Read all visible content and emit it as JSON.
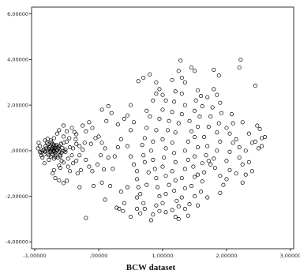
{
  "chart_data": {
    "type": "scatter",
    "title": "",
    "xlabel": "BCW dataset",
    "ylabel": "",
    "xlim": [
      -1.05,
      3.05
    ],
    "ylim": [
      -4.3,
      6.3
    ],
    "x_ticks": [
      {
        "value": -1,
        "label": "-1,00000"
      },
      {
        "value": 0,
        "label": ",00000"
      },
      {
        "value": 1,
        "label": "1,00000"
      },
      {
        "value": 2,
        "label": "2,00000"
      },
      {
        "value": 3,
        "label": "3,00000"
      }
    ],
    "y_ticks": [
      {
        "value": 6,
        "label": "6,00000"
      },
      {
        "value": 4,
        "label": "4,00000"
      },
      {
        "value": 2,
        "label": "2,00000"
      },
      {
        "value": 0,
        "label": ",00000"
      },
      {
        "value": -2,
        "label": "-2,00000"
      },
      {
        "value": -4,
        "label": "-4,00000"
      }
    ],
    "grid": false,
    "marker": "open-circle",
    "marker_color": "#000000",
    "series": [
      {
        "points": [
          [
            -0.42,
            1.0
          ],
          [
            -0.38,
            0.82
          ],
          [
            -0.46,
            0.55
          ],
          [
            -0.5,
            0.4
          ],
          [
            -0.55,
            0.35
          ],
          [
            -0.6,
            -0.25
          ],
          [
            -0.58,
            -0.45
          ],
          [
            -0.55,
            -0.52
          ],
          [
            -0.48,
            -0.35
          ],
          [
            -0.62,
            -0.65
          ],
          [
            -0.68,
            -1.2
          ],
          [
            -0.62,
            -1.3
          ],
          [
            -0.55,
            -1.42
          ],
          [
            -0.5,
            -1.32
          ],
          [
            -0.72,
            -1.0
          ],
          [
            -0.85,
            -0.55
          ],
          [
            -0.88,
            -0.3
          ],
          [
            -0.9,
            -0.2
          ],
          [
            -0.92,
            0.2
          ],
          [
            -0.94,
            0.35
          ],
          [
            -0.84,
            0.45
          ],
          [
            -0.8,
            0.52
          ],
          [
            -0.7,
            0.55
          ],
          [
            -0.7,
            -0.85
          ],
          [
            -0.45,
            -0.9
          ],
          [
            -0.35,
            -0.45
          ],
          [
            -0.42,
            -0.2
          ],
          [
            -0.4,
            0.1
          ],
          [
            -0.36,
            0.5
          ],
          [
            -0.48,
            -0.7
          ],
          [
            -0.3,
            0.2
          ],
          [
            -0.25,
            0.05
          ],
          [
            -0.22,
            0.35
          ],
          [
            -0.3,
            -0.2
          ],
          [
            -0.2,
            -0.4
          ],
          [
            -0.28,
            -0.85
          ],
          [
            -0.33,
            -1.0
          ],
          [
            -0.15,
            -0.7
          ],
          [
            -0.1,
            -0.9
          ],
          [
            -0.12,
            0.3
          ],
          [
            -0.2,
            0.85
          ],
          [
            -0.35,
            0.72
          ],
          [
            -0.25,
            1.1
          ],
          [
            -0.62,
            0.9
          ],
          [
            -0.55,
            0.62
          ],
          [
            -0.15,
            1.25
          ],
          [
            -0.1,
            1.0
          ],
          [
            -0.05,
            0.55
          ],
          [
            0.0,
            0.62
          ],
          [
            0.05,
            0.35
          ],
          [
            0.1,
            0.1
          ],
          [
            0.03,
            -0.2
          ],
          [
            -0.02,
            -0.6
          ],
          [
            0.08,
            -0.82
          ],
          [
            0.15,
            -0.3
          ],
          [
            0.18,
            -1.55
          ],
          [
            0.05,
            -1.4
          ],
          [
            0.1,
            -2.15
          ],
          [
            -0.08,
            -1.55
          ],
          [
            -0.3,
            -1.6
          ],
          [
            -0.2,
            -2.95
          ],
          [
            0.28,
            -2.5
          ],
          [
            0.32,
            -2.55
          ],
          [
            0.4,
            -2.3
          ],
          [
            0.45,
            -1.6
          ],
          [
            0.35,
            -1.8
          ],
          [
            0.22,
            -0.8
          ],
          [
            0.25,
            -0.25
          ],
          [
            0.3,
            0.15
          ],
          [
            0.35,
            0.5
          ],
          [
            0.3,
            1.15
          ],
          [
            0.12,
            1.3
          ],
          [
            0.05,
            1.8
          ],
          [
            0.15,
            1.95
          ],
          [
            0.2,
            1.65
          ],
          [
            0.4,
            1.4
          ],
          [
            0.45,
            1.55
          ],
          [
            0.5,
            2.0
          ],
          [
            0.55,
            1.25
          ],
          [
            0.5,
            0.9
          ],
          [
            0.45,
            0.2
          ],
          [
            0.5,
            -0.25
          ],
          [
            0.55,
            -0.6
          ],
          [
            0.6,
            -0.9
          ],
          [
            0.6,
            -1.25
          ],
          [
            0.62,
            -1.6
          ],
          [
            0.6,
            -2.05
          ],
          [
            0.65,
            -1.9
          ],
          [
            0.7,
            -2.3
          ],
          [
            0.6,
            -2.55
          ],
          [
            0.65,
            -2.75
          ],
          [
            0.72,
            -2.55
          ],
          [
            0.75,
            -1.5
          ],
          [
            0.78,
            -0.95
          ],
          [
            0.72,
            -0.5
          ],
          [
            0.7,
            -0.2
          ],
          [
            0.68,
            0.25
          ],
          [
            0.72,
            0.55
          ],
          [
            0.75,
            1.0
          ],
          [
            0.8,
            1.5
          ],
          [
            0.75,
            1.75
          ],
          [
            0.85,
            2.2
          ],
          [
            0.9,
            2.5
          ],
          [
            0.62,
            3.05
          ],
          [
            0.7,
            3.2
          ],
          [
            0.8,
            3.35
          ],
          [
            0.9,
            3.0
          ],
          [
            0.95,
            2.7
          ],
          [
            1.0,
            2.45
          ],
          [
            1.05,
            2.2
          ],
          [
            1.0,
            1.8
          ],
          [
            0.95,
            1.4
          ],
          [
            0.9,
            0.9
          ],
          [
            0.85,
            0.4
          ],
          [
            0.82,
            0.0
          ],
          [
            0.85,
            -0.4
          ],
          [
            0.88,
            -0.8
          ],
          [
            0.9,
            -1.2
          ],
          [
            0.92,
            -1.6
          ],
          [
            0.95,
            -2.0
          ],
          [
            0.9,
            -2.4
          ],
          [
            0.85,
            -2.8
          ],
          [
            0.95,
            -2.65
          ],
          [
            1.0,
            -2.3
          ],
          [
            1.05,
            -1.9
          ],
          [
            1.1,
            -1.5
          ],
          [
            1.05,
            -1.1
          ],
          [
            1.0,
            -0.7
          ],
          [
            1.02,
            -0.3
          ],
          [
            1.05,
            0.1
          ],
          [
            1.0,
            0.5
          ],
          [
            1.08,
            0.9
          ],
          [
            1.1,
            1.3
          ],
          [
            1.15,
            1.7
          ],
          [
            1.18,
            2.15
          ],
          [
            1.2,
            2.6
          ],
          [
            1.15,
            3.1
          ],
          [
            1.25,
            3.5
          ],
          [
            1.3,
            3.2
          ],
          [
            1.35,
            3.0
          ],
          [
            1.28,
            3.95
          ],
          [
            1.45,
            3.65
          ],
          [
            1.5,
            3.5
          ],
          [
            1.3,
            2.5
          ],
          [
            1.35,
            2.0
          ],
          [
            1.3,
            1.6
          ],
          [
            1.25,
            1.2
          ],
          [
            1.2,
            0.8
          ],
          [
            1.15,
            0.35
          ],
          [
            1.18,
            -0.1
          ],
          [
            1.2,
            -0.5
          ],
          [
            1.15,
            -0.9
          ],
          [
            1.2,
            -1.3
          ],
          [
            1.18,
            -1.75
          ],
          [
            1.22,
            -2.2
          ],
          [
            1.15,
            -2.6
          ],
          [
            1.2,
            -2.9
          ],
          [
            1.25,
            -2.45
          ],
          [
            1.3,
            -2.05
          ],
          [
            1.35,
            -1.65
          ],
          [
            1.3,
            -1.2
          ],
          [
            1.35,
            -0.8
          ],
          [
            1.4,
            -0.4
          ],
          [
            1.35,
            0.0
          ],
          [
            1.4,
            0.4
          ],
          [
            1.45,
            0.85
          ],
          [
            1.42,
            1.3
          ],
          [
            1.5,
            1.75
          ],
          [
            1.52,
            2.2
          ],
          [
            1.55,
            2.65
          ],
          [
            1.6,
            2.4
          ],
          [
            1.62,
            1.95
          ],
          [
            1.58,
            1.5
          ],
          [
            1.55,
            1.05
          ],
          [
            1.5,
            0.6
          ],
          [
            1.55,
            0.15
          ],
          [
            1.5,
            -0.25
          ],
          [
            1.48,
            -0.7
          ],
          [
            1.5,
            -1.15
          ],
          [
            1.45,
            -1.55
          ],
          [
            1.5,
            -2.0
          ],
          [
            1.42,
            -2.35
          ],
          [
            1.35,
            -2.55
          ],
          [
            1.55,
            -2.4
          ],
          [
            1.6,
            -1.8
          ],
          [
            1.62,
            -1.35
          ],
          [
            1.65,
            -0.95
          ],
          [
            1.62,
            -0.55
          ],
          [
            1.68,
            -0.2
          ],
          [
            1.7,
            0.2
          ],
          [
            1.65,
            0.6
          ],
          [
            1.72,
            1.05
          ],
          [
            1.75,
            1.5
          ],
          [
            1.78,
            1.9
          ],
          [
            1.7,
            2.35
          ],
          [
            1.8,
            2.7
          ],
          [
            1.85,
            2.45
          ],
          [
            1.88,
            3.3
          ],
          [
            1.8,
            3.55
          ],
          [
            1.9,
            2.1
          ],
          [
            1.92,
            1.65
          ],
          [
            1.88,
            1.2
          ],
          [
            1.85,
            0.8
          ],
          [
            1.9,
            0.4
          ],
          [
            1.85,
            0.0
          ],
          [
            1.8,
            -0.35
          ],
          [
            1.75,
            -0.6
          ],
          [
            1.72,
            -0.45
          ],
          [
            1.82,
            -0.75
          ],
          [
            1.9,
            -1.1
          ],
          [
            1.95,
            -1.5
          ],
          [
            1.9,
            -1.85
          ],
          [
            2.0,
            -1.25
          ],
          [
            2.05,
            -0.85
          ],
          [
            2.0,
            -0.45
          ],
          [
            2.05,
            -0.05
          ],
          [
            2.1,
            0.35
          ],
          [
            2.05,
            0.75
          ],
          [
            2.1,
            1.2
          ],
          [
            2.08,
            1.6
          ],
          [
            2.15,
            0.5
          ],
          [
            2.2,
            0.15
          ],
          [
            2.2,
            -0.3
          ],
          [
            2.25,
            -0.6
          ],
          [
            2.15,
            -1.0
          ],
          [
            2.25,
            -1.4
          ],
          [
            2.3,
            -1.05
          ],
          [
            2.35,
            -0.5
          ],
          [
            2.3,
            0.0
          ],
          [
            2.4,
            0.35
          ],
          [
            2.35,
            0.75
          ],
          [
            2.45,
            0.4
          ],
          [
            2.5,
            0.1
          ],
          [
            2.48,
            1.1
          ],
          [
            2.52,
            0.95
          ],
          [
            2.55,
            0.55
          ],
          [
            2.6,
            0.6
          ],
          [
            2.55,
            0.2
          ],
          [
            2.45,
            2.85
          ],
          [
            2.2,
            3.65
          ],
          [
            2.22,
            4.0
          ],
          [
            2.0,
            1.0
          ],
          [
            2.25,
            1.25
          ],
          [
            2.4,
            -0.9
          ],
          [
            1.7,
            -2.05
          ],
          [
            1.55,
            -1.05
          ],
          [
            1.4,
            -2.85
          ],
          [
            1.25,
            -3.0
          ],
          [
            1.05,
            -2.7
          ],
          [
            0.82,
            -3.05
          ],
          [
            0.5,
            -2.9
          ],
          [
            0.38,
            -2.65
          ],
          [
            -0.55,
            1.1
          ],
          [
            -0.5,
            0.85
          ],
          [
            -0.65,
            0.75
          ],
          [
            -0.75,
            0.45
          ],
          [
            -0.52,
            -0.05
          ],
          [
            -0.45,
            0.15
          ],
          [
            -0.4,
            -0.55
          ],
          [
            -0.35,
            0.3
          ],
          [
            -0.92,
            -0.05
          ],
          [
            -0.95,
            0.1
          ],
          [
            -0.6,
            -0.75
          ],
          [
            -0.78,
            -0.4
          ]
        ]
      },
      {
        "points": [
          [
            -0.8,
            0.0
          ],
          [
            -0.78,
            0.08
          ],
          [
            -0.75,
            -0.05
          ],
          [
            -0.72,
            0.12
          ],
          [
            -0.7,
            0.02
          ],
          [
            -0.68,
            -0.1
          ],
          [
            -0.66,
            0.05
          ],
          [
            -0.82,
            0.1
          ],
          [
            -0.84,
            -0.04
          ],
          [
            -0.76,
            0.2
          ],
          [
            -0.73,
            -0.15
          ],
          [
            -0.7,
            0.25
          ],
          [
            -0.67,
            -0.2
          ],
          [
            -0.64,
            0.15
          ],
          [
            -0.62,
            -0.05
          ],
          [
            -0.86,
            0.05
          ],
          [
            -0.8,
            -0.12
          ],
          [
            -0.77,
            0.15
          ],
          [
            -0.74,
            0.05
          ],
          [
            -0.71,
            -0.05
          ],
          [
            -0.69,
            0.1
          ],
          [
            -0.65,
            0.0
          ],
          [
            -0.63,
            0.1
          ],
          [
            -0.6,
            0.0
          ],
          [
            -0.58,
            -0.08
          ],
          [
            -0.79,
            0.28
          ],
          [
            -0.75,
            -0.25
          ],
          [
            -0.72,
            0.3
          ],
          [
            -0.68,
            -0.28
          ],
          [
            -0.66,
            0.25
          ],
          [
            -0.83,
            0.2
          ],
          [
            -0.85,
            -0.15
          ],
          [
            -0.78,
            -0.2
          ],
          [
            -0.62,
            0.22
          ],
          [
            -0.6,
            -0.2
          ],
          [
            -0.57,
            0.12
          ],
          [
            -0.55,
            -0.02
          ],
          [
            -0.88,
            0.0
          ],
          [
            -0.81,
            0.35
          ],
          [
            -0.7,
            -0.35
          ],
          [
            -0.74,
            0.38
          ],
          [
            -0.64,
            -0.3
          ],
          [
            -0.59,
            0.3
          ],
          [
            -0.52,
            0.05
          ],
          [
            -0.9,
            -0.08
          ],
          [
            -0.76,
            0.0
          ],
          [
            -0.73,
            0.08
          ],
          [
            -0.69,
            -0.02
          ],
          [
            -0.67,
            0.18
          ],
          [
            -0.71,
            0.18
          ]
        ]
      }
    ]
  }
}
